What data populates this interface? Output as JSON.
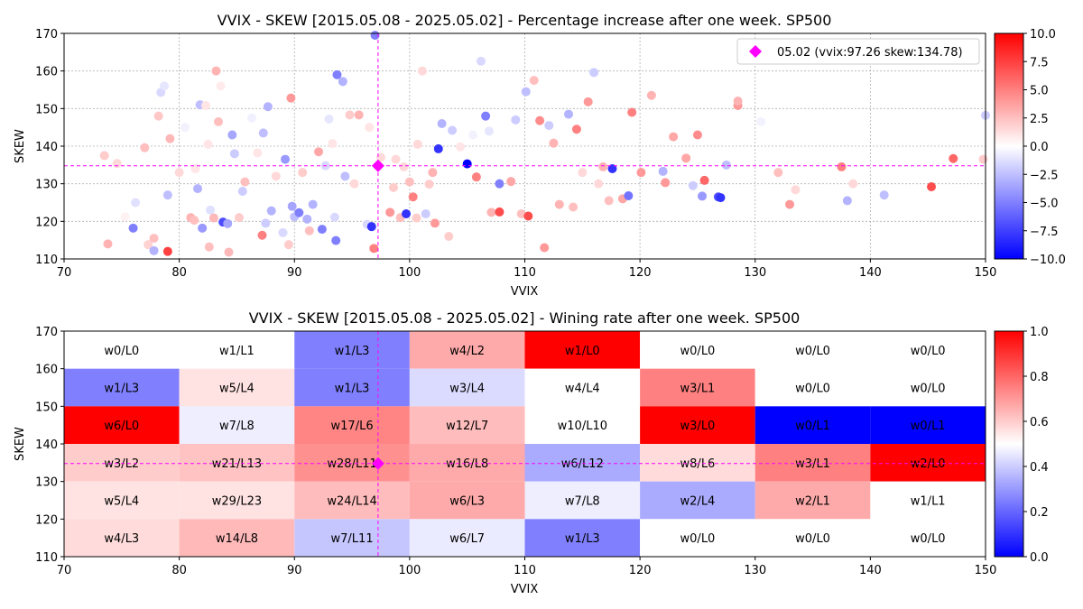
{
  "chart_data": [
    {
      "type": "scatter",
      "title": "VVIX - SKEW [2015.05.08 - 2025.05.02]  - Percentage increase after one week. SP500",
      "xlabel": "VVIX",
      "ylabel": "SKEW",
      "xlim": [
        70,
        150
      ],
      "ylim": [
        110,
        170
      ],
      "xticks": [
        "70",
        "80",
        "90",
        "100",
        "110",
        "120",
        "130",
        "140",
        "150"
      ],
      "yticks": [
        "110",
        "120",
        "130",
        "140",
        "150",
        "160",
        "170"
      ],
      "grid": true,
      "colormap": "bwr",
      "colorbar_range": [
        -10,
        10
      ],
      "colorbar_ticks": [
        "−10.0",
        "−7.5",
        "−5.0",
        "−2.5",
        "0.0",
        "2.5",
        "5.0",
        "7.5",
        "10.0"
      ],
      "marker": {
        "x": 97.26,
        "y": 134.78,
        "color": "#ff00ff"
      },
      "legend": {
        "label": "05.02 (vvix:97.26 skew:134.78)",
        "position": "upper-right"
      },
      "points": [
        [
          73.5,
          137.5,
          2
        ],
        [
          73.8,
          114,
          3
        ],
        [
          74.6,
          135.4,
          1.5
        ],
        [
          75.3,
          121.2,
          0.5
        ],
        [
          76,
          118.2,
          -5
        ],
        [
          76.2,
          125,
          -1.2
        ],
        [
          77,
          139.6,
          2.5
        ],
        [
          77.3,
          113.8,
          1.8
        ],
        [
          77.8,
          115.5,
          2.5
        ],
        [
          77.8,
          112.2,
          -3
        ],
        [
          78.2,
          148,
          2.2
        ],
        [
          78.4,
          154.3,
          -1.5
        ],
        [
          78.7,
          156,
          -1
        ],
        [
          79,
          112,
          7.5
        ],
        [
          79.2,
          142,
          2.8
        ],
        [
          79,
          127,
          -2.5
        ],
        [
          80,
          133,
          1.5
        ],
        [
          80.5,
          145,
          -0.5
        ],
        [
          81,
          121,
          3
        ],
        [
          81.3,
          120.3,
          2.5
        ],
        [
          81.4,
          134,
          1
        ],
        [
          81.6,
          128.7,
          -3
        ],
        [
          81.8,
          151,
          -2.5
        ],
        [
          82,
          118.2,
          -4
        ],
        [
          82.3,
          150.8,
          1
        ],
        [
          82.5,
          140.5,
          1
        ],
        [
          82.6,
          113.2,
          2.5
        ],
        [
          82.7,
          123,
          -1.2
        ],
        [
          83,
          120.9,
          2.8
        ],
        [
          83.2,
          160,
          3
        ],
        [
          83.4,
          146.5,
          2.5
        ],
        [
          83.6,
          156,
          0.8
        ],
        [
          83.8,
          119.8,
          -7
        ],
        [
          84.2,
          119.4,
          -3.5
        ],
        [
          84.3,
          111.8,
          2.8
        ],
        [
          84.6,
          143,
          -3.5
        ],
        [
          84.8,
          138,
          -2
        ],
        [
          85.2,
          121,
          2
        ],
        [
          85.5,
          128,
          -2
        ],
        [
          85.7,
          130.5,
          2.5
        ],
        [
          86.3,
          147.5,
          -0.6
        ],
        [
          86.8,
          138.2,
          1
        ],
        [
          87.2,
          116.3,
          5
        ],
        [
          87.3,
          143.5,
          -2.5
        ],
        [
          87.5,
          119.5,
          -2
        ],
        [
          87.7,
          150.5,
          -3
        ],
        [
          88,
          122.8,
          -3
        ],
        [
          88.4,
          132,
          1.5
        ],
        [
          89,
          117,
          -1.5
        ],
        [
          89.2,
          136.5,
          -4
        ],
        [
          89.5,
          113.8,
          2
        ],
        [
          89.7,
          152.8,
          4
        ],
        [
          89.8,
          124,
          -3.5
        ],
        [
          90,
          121.2,
          -2.5
        ],
        [
          90.4,
          122.3,
          -5
        ],
        [
          90.7,
          133,
          2
        ],
        [
          91.1,
          120.6,
          -3
        ],
        [
          91.3,
          117.5,
          2.5
        ],
        [
          91.6,
          124.5,
          -3
        ],
        [
          92.1,
          138.5,
          3.5
        ],
        [
          92.4,
          117.9,
          -5
        ],
        [
          92.7,
          134.8,
          -1.5
        ],
        [
          93,
          147.2,
          -1
        ],
        [
          93.3,
          140.7,
          1
        ],
        [
          93.5,
          121.1,
          -1.5
        ],
        [
          93.6,
          114.9,
          -5
        ],
        [
          93.7,
          159,
          -5
        ],
        [
          94.2,
          157.2,
          -3
        ],
        [
          94.4,
          132,
          -2.5
        ],
        [
          94.8,
          148.3,
          2
        ],
        [
          95.2,
          130,
          1.5
        ],
        [
          95.6,
          148.3,
          3
        ],
        [
          96.3,
          119.2,
          -1.5
        ],
        [
          96.7,
          118.6,
          -8
        ],
        [
          96.5,
          145,
          1
        ],
        [
          96.9,
          112.8,
          5
        ],
        [
          97,
          169.5,
          -5
        ],
        [
          97.5,
          137,
          1.5
        ],
        [
          98.3,
          122.4,
          4
        ],
        [
          98.6,
          129,
          2
        ],
        [
          98.8,
          136.5,
          1.5
        ],
        [
          99.2,
          121,
          2.5
        ],
        [
          99.5,
          134.5,
          1.5
        ],
        [
          99.7,
          122,
          -8
        ],
        [
          100,
          130.5,
          2.5
        ],
        [
          100.3,
          126.5,
          5
        ],
        [
          100.6,
          120.9,
          2
        ],
        [
          100.7,
          140.5,
          1.5
        ],
        [
          101.1,
          160,
          1.5
        ],
        [
          101.4,
          122,
          -2
        ],
        [
          101.7,
          129.9,
          2
        ],
        [
          102,
          133,
          3
        ],
        [
          102.2,
          119.5,
          4
        ],
        [
          102.5,
          139.3,
          -8
        ],
        [
          102.8,
          146,
          -3
        ],
        [
          103.4,
          116,
          2
        ],
        [
          103.7,
          144.2,
          -2
        ],
        [
          104.4,
          139.8,
          1
        ],
        [
          105,
          135.3,
          -10
        ],
        [
          105.5,
          143,
          -0.5
        ],
        [
          105.8,
          131.8,
          5
        ],
        [
          106.2,
          162.6,
          -1.5
        ],
        [
          106.6,
          148,
          -5
        ],
        [
          106.9,
          144,
          -1
        ],
        [
          107.1,
          122.4,
          3
        ],
        [
          107.8,
          122.5,
          7
        ],
        [
          107.8,
          130,
          -5
        ],
        [
          108.8,
          130.6,
          3.5
        ],
        [
          109.2,
          147,
          -2
        ],
        [
          109.7,
          122,
          2.5
        ],
        [
          110.1,
          154.5,
          -2.5
        ],
        [
          110.3,
          121.4,
          7
        ],
        [
          110.8,
          157.5,
          2.5
        ],
        [
          111.3,
          146.8,
          4.5
        ],
        [
          111.7,
          113,
          4
        ],
        [
          112.1,
          145.5,
          -2
        ],
        [
          112.5,
          140.8,
          3
        ],
        [
          113,
          124.5,
          3
        ],
        [
          113.8,
          148.5,
          -3
        ],
        [
          114.2,
          123.8,
          2.5
        ],
        [
          114.5,
          144.5,
          5
        ],
        [
          115,
          133,
          1.5
        ],
        [
          115.5,
          151.8,
          4
        ],
        [
          116,
          159.6,
          -2
        ],
        [
          116.4,
          130,
          1.5
        ],
        [
          116.8,
          134.5,
          3
        ],
        [
          117.3,
          125.5,
          2.5
        ],
        [
          117.6,
          134,
          -8
        ],
        [
          118.5,
          126,
          3.5
        ],
        [
          119,
          126.8,
          -5.5
        ],
        [
          119.3,
          149,
          5
        ],
        [
          120.1,
          133,
          4
        ],
        [
          121,
          153.5,
          3
        ],
        [
          122,
          133.3,
          -3
        ],
        [
          122.2,
          130.3,
          4
        ],
        [
          122.9,
          142.5,
          3.5
        ],
        [
          124,
          136.8,
          3.5
        ],
        [
          124.6,
          129.5,
          -2
        ],
        [
          125,
          143,
          4.5
        ],
        [
          125.4,
          126.7,
          -4
        ],
        [
          125.6,
          130.9,
          6
        ],
        [
          126.8,
          126.5,
          -7
        ],
        [
          127,
          126.3,
          -8
        ],
        [
          127.5,
          135,
          -2.5
        ],
        [
          128.5,
          150.8,
          4
        ],
        [
          128.5,
          152,
          3
        ],
        [
          130.5,
          146.5,
          -0.5
        ],
        [
          132,
          133,
          2.5
        ],
        [
          133,
          124.5,
          4
        ],
        [
          133.5,
          128.4,
          1.5
        ],
        [
          137.5,
          134.5,
          5
        ],
        [
          138,
          125.5,
          -3
        ],
        [
          138.5,
          130,
          1.5
        ],
        [
          141.2,
          127,
          -2.5
        ],
        [
          145.3,
          129.2,
          7
        ],
        [
          147.2,
          136.7,
          6
        ],
        [
          149.8,
          136.5,
          2
        ],
        [
          150,
          148.2,
          -2
        ]
      ]
    },
    {
      "type": "heatmap",
      "title": "VVIX - SKEW [2015.05.08 - 2025.05.02]  - Wining rate after one week. SP500",
      "xlabel": "VVIX",
      "ylabel": "SKEW",
      "xlim": [
        70,
        150
      ],
      "ylim": [
        110,
        170
      ],
      "xticks": [
        "70",
        "80",
        "90",
        "100",
        "110",
        "120",
        "130",
        "140",
        "150"
      ],
      "yticks": [
        "110",
        "120",
        "130",
        "140",
        "150",
        "160",
        "170"
      ],
      "colormap": "bwr",
      "colorbar_range": [
        0,
        1
      ],
      "colorbar_ticks": [
        "0.0",
        "0.2",
        "0.4",
        "0.6",
        "0.8",
        "1.0"
      ],
      "marker": {
        "x": 97.26,
        "y": 134.78,
        "color": "#ff00ff"
      },
      "x_edges": [
        70,
        80,
        90,
        100,
        110,
        120,
        130,
        140,
        150
      ],
      "y_edges": [
        110,
        120,
        130,
        140,
        150,
        160,
        170
      ],
      "rows": [
        {
          "y_range": [
            160,
            170
          ],
          "cells": [
            "w0/L0",
            "w1/L1",
            "w1/L3",
            "w4/L2",
            "w1/L0",
            "w0/L0",
            "w0/L0",
            "w0/L0"
          ]
        },
        {
          "y_range": [
            150,
            160
          ],
          "cells": [
            "w1/L3",
            "w5/L4",
            "w1/L3",
            "w3/L4",
            "w4/L4",
            "w3/L1",
            "w0/L0",
            "w0/L0"
          ]
        },
        {
          "y_range": [
            140,
            150
          ],
          "cells": [
            "w6/L0",
            "w7/L8",
            "w17/L6",
            "w12/L7",
            "w10/L10",
            "w3/L0",
            "w0/L1",
            "w0/L1"
          ]
        },
        {
          "y_range": [
            130,
            140
          ],
          "cells": [
            "w3/L2",
            "w21/L13",
            "w28/L11",
            "w16/L8",
            "w6/L12",
            "w8/L6",
            "w3/L1",
            "w2/L0"
          ]
        },
        {
          "y_range": [
            120,
            130
          ],
          "cells": [
            "w5/L4",
            "w29/L23",
            "w24/L14",
            "w6/L3",
            "w7/L8",
            "w2/L4",
            "w2/L1",
            "w1/L1"
          ]
        },
        {
          "y_range": [
            110,
            120
          ],
          "cells": [
            "w4/L3",
            "w14/L8",
            "w7/L11",
            "w6/L7",
            "w1/L3",
            "w0/L0",
            "w0/L0",
            "w0/L0"
          ]
        }
      ]
    }
  ]
}
